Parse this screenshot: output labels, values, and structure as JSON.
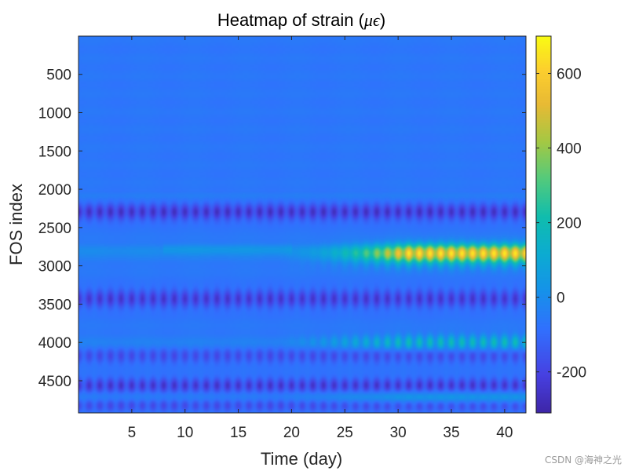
{
  "chart_data": {
    "type": "heatmap",
    "title_prefix": "Heatmap of strain (",
    "title_mu": "μ",
    "title_eps": "ϵ",
    "title_suffix": ")",
    "xlabel": "Time (day)",
    "ylabel": "FOS index",
    "xlim": [
      0,
      42
    ],
    "ylim": [
      1,
      4920
    ],
    "y_reversed": true,
    "x_ticks": [
      5,
      10,
      15,
      20,
      25,
      30,
      35,
      40
    ],
    "x_tick_labels": [
      "5",
      "10",
      "15",
      "20",
      "25",
      "30",
      "35",
      "40"
    ],
    "y_ticks": [
      500,
      1000,
      1500,
      2000,
      2500,
      3000,
      3500,
      4000,
      4500
    ],
    "y_tick_labels": [
      "500",
      "1000",
      "1500",
      "2000",
      "2500",
      "3000",
      "3500",
      "4000",
      "4500"
    ],
    "colorbar": {
      "colormap": "parula",
      "limits": [
        -310,
        700
      ],
      "ticks": [
        -200,
        0,
        200,
        400,
        600
      ],
      "tick_labels": [
        "-200",
        "0",
        "200",
        "400",
        "600"
      ]
    },
    "value_summary": [
      {
        "fos_range": [
          1,
          2050
        ],
        "strain_range": [
          -80,
          -50
        ],
        "note": "nearly uniform"
      },
      {
        "fos_range": [
          2200,
          2400
        ],
        "strain_range": [
          -280,
          -150
        ],
        "note": "periodic negative stripes"
      },
      {
        "fos_range": [
          2700,
          2950
        ],
        "strain_range": [
          50,
          680
        ],
        "note": "strain grows after day 20, peak ~650 near day 30-41"
      },
      {
        "fos_range": [
          3300,
          3550
        ],
        "strain_range": [
          -280,
          -150
        ],
        "note": "periodic negative stripes"
      },
      {
        "fos_range": [
          3850,
          4050
        ],
        "strain_range": [
          -100,
          200
        ],
        "note": "moderate positive later in time"
      },
      {
        "fos_range": [
          4500,
          4920
        ],
        "strain_range": [
          -250,
          100
        ],
        "note": "alternating stripes"
      }
    ],
    "daily_cycle_period_days": 1
  },
  "watermark": "CSDN @海神之光"
}
